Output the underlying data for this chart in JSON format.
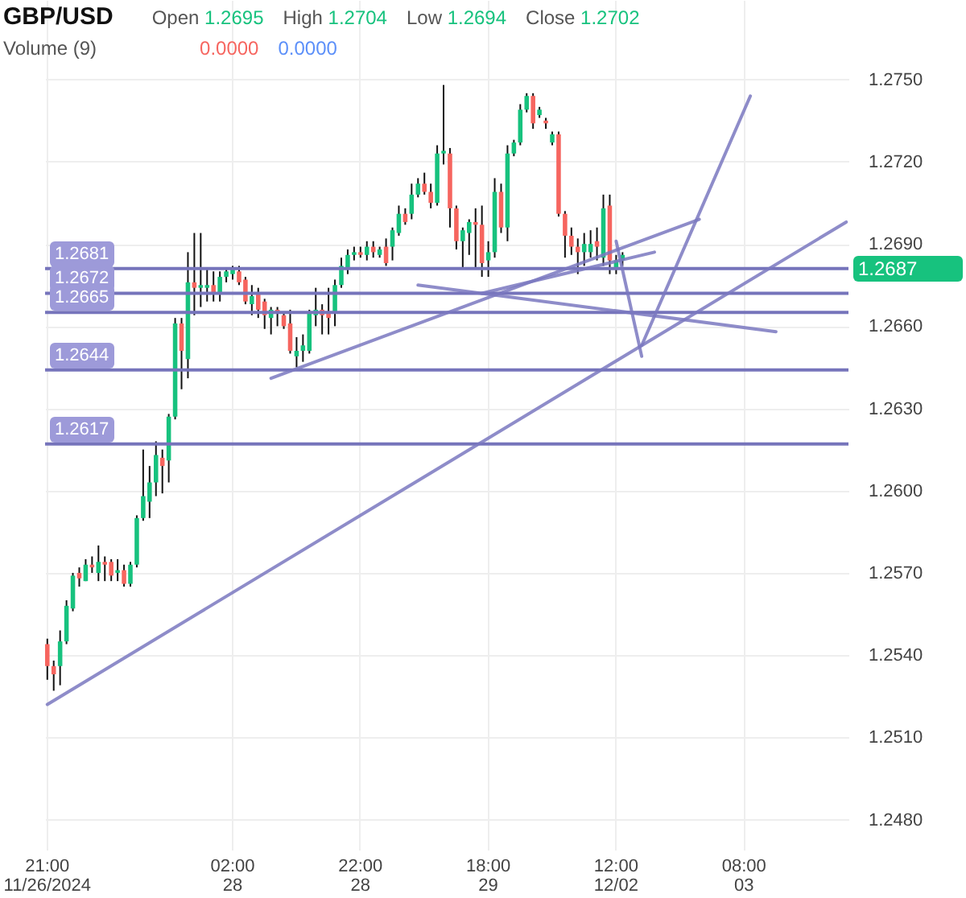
{
  "chart_data": {
    "type": "candlestick",
    "title": "GBP/USD",
    "annotations": [
      "Open 1.2695",
      "High 1.2704",
      "Low 1.2694",
      "Close 1.2702",
      "Volume (9)",
      "0.0000",
      "0.0000",
      "1.2687"
    ],
    "categories": [
      "21:00\n11/26/2024",
      null,
      null,
      null,
      null,
      null,
      null,
      null,
      null,
      null,
      null,
      null,
      null,
      null,
      null,
      null,
      null,
      null,
      null,
      null,
      null,
      null,
      null,
      null,
      null,
      null,
      null,
      null,
      null,
      "02:00\n28",
      null,
      null,
      null,
      null,
      null,
      null,
      null,
      null,
      null,
      null,
      null,
      null,
      null,
      null,
      null,
      null,
      null,
      null,
      null,
      "22:00\n28",
      null,
      null,
      null,
      null,
      null,
      null,
      null,
      null,
      null,
      null,
      null,
      null,
      null,
      null,
      null,
      null,
      null,
      null,
      null,
      "18:00\n29",
      null,
      null,
      null,
      null,
      null,
      null,
      null,
      null,
      null,
      null,
      null,
      null,
      null,
      null,
      null,
      null,
      null,
      null,
      null,
      "12:00\n12/02",
      null,
      null,
      null,
      null,
      null,
      null,
      null,
      null,
      null,
      null,
      null,
      null,
      null,
      null,
      null,
      null,
      null,
      null,
      null,
      "08:00\n03",
      null,
      null,
      null,
      null,
      null,
      null,
      null,
      null,
      null,
      null,
      null,
      null,
      null,
      null,
      null,
      null
    ],
    "ohlc": [
      [
        1.2544,
        1.2546,
        1.2531,
        1.2536
      ],
      [
        1.2536,
        1.2538,
        1.2527,
        1.2533
      ],
      [
        1.2536,
        1.2549,
        1.2529,
        1.2545
      ],
      [
        1.2545,
        1.256,
        1.2544,
        1.2558
      ],
      [
        1.2557,
        1.257,
        1.2556,
        1.2569
      ],
      [
        1.257,
        1.2572,
        1.2565,
        1.2568
      ],
      [
        1.2567,
        1.2575,
        1.2567,
        1.2573
      ],
      [
        1.2573,
        1.2576,
        1.257,
        1.2572
      ],
      [
        1.257,
        1.258,
        1.2567,
        1.2574
      ],
      [
        1.2574,
        1.2576,
        1.2567,
        1.2573
      ],
      [
        1.2574,
        1.2575,
        1.2567,
        1.2569
      ],
      [
        1.257,
        1.2575,
        1.2567,
        1.2571
      ],
      [
        1.2571,
        1.2573,
        1.2565,
        1.2566
      ],
      [
        1.2566,
        1.2574,
        1.2565,
        1.2573
      ],
      [
        1.2573,
        1.2591,
        1.2572,
        1.259
      ],
      [
        1.259,
        1.2615,
        1.2589,
        1.2598
      ],
      [
        1.2596,
        1.2609,
        1.259,
        1.2603
      ],
      [
        1.2603,
        1.2618,
        1.2598,
        1.2613
      ],
      [
        1.2612,
        1.2615,
        1.2599,
        1.2609
      ],
      [
        1.2611,
        1.2628,
        1.2603,
        1.2627
      ],
      [
        1.2627,
        1.2663,
        1.2626,
        1.2661
      ],
      [
        1.2661,
        1.2663,
        1.2637,
        1.2651
      ],
      [
        1.2648,
        1.2687,
        1.2641,
        1.2676
      ],
      [
        1.2676,
        1.2694,
        1.2664,
        1.2674
      ],
      [
        1.2674,
        1.2694,
        1.2667,
        1.2675
      ],
      [
        1.2674,
        1.2681,
        1.2669,
        1.2675
      ],
      [
        1.2675,
        1.268,
        1.2669,
        1.2672
      ],
      [
        1.2672,
        1.268,
        1.2669,
        1.2678
      ],
      [
        1.2678,
        1.2681,
        1.2676,
        1.268
      ],
      [
        1.2679,
        1.2682,
        1.2677,
        1.2681
      ],
      [
        1.268,
        1.2682,
        1.2675,
        1.2676
      ],
      [
        1.2677,
        1.2678,
        1.2668,
        1.2669
      ],
      [
        1.2668,
        1.2675,
        1.2664,
        1.2671
      ],
      [
        1.2672,
        1.2674,
        1.2663,
        1.2666
      ],
      [
        1.2669,
        1.267,
        1.2659,
        1.2664
      ],
      [
        1.2663,
        1.2667,
        1.2657,
        1.2666
      ],
      [
        1.2666,
        1.2667,
        1.266,
        1.2665
      ],
      [
        1.2664,
        1.2665,
        1.2659,
        1.266
      ],
      [
        1.2661,
        1.2666,
        1.265,
        1.2651
      ],
      [
        1.2649,
        1.2656,
        1.2645,
        1.2651
      ],
      [
        1.2651,
        1.2657,
        1.2647,
        1.2653
      ],
      [
        1.2651,
        1.2666,
        1.265,
        1.2665
      ],
      [
        1.2664,
        1.2674,
        1.266,
        1.2666
      ],
      [
        1.2666,
        1.2668,
        1.2657,
        1.2664
      ],
      [
        1.2665,
        1.2674,
        1.2657,
        1.2663
      ],
      [
        1.2665,
        1.2677,
        1.266,
        1.2675
      ],
      [
        1.2675,
        1.2685,
        1.2674,
        1.2682
      ],
      [
        1.2681,
        1.2688,
        1.2679,
        1.2686
      ],
      [
        1.2686,
        1.2689,
        1.2684,
        1.2687
      ],
      [
        1.2687,
        1.2689,
        1.2685,
        1.2686
      ],
      [
        1.2686,
        1.2691,
        1.2684,
        1.2689
      ],
      [
        1.2689,
        1.2691,
        1.2685,
        1.2687
      ],
      [
        1.2686,
        1.2689,
        1.2685,
        1.2688
      ],
      [
        1.2689,
        1.2692,
        1.2682,
        1.2683
      ],
      [
        1.2689,
        1.2696,
        1.2684,
        1.2695
      ],
      [
        1.2694,
        1.2704,
        1.2693,
        1.2701
      ],
      [
        1.2701,
        1.2703,
        1.2697,
        1.2698
      ],
      [
        1.2701,
        1.2712,
        1.2699,
        1.2708
      ],
      [
        1.2708,
        1.2714,
        1.2707,
        1.2712
      ],
      [
        1.2712,
        1.2716,
        1.2708,
        1.2709
      ],
      [
        1.2709,
        1.2712,
        1.2703,
        1.2705
      ],
      [
        1.2705,
        1.2726,
        1.2704,
        1.2723
      ],
      [
        1.2723,
        1.2748,
        1.2719,
        1.2724
      ],
      [
        1.2723,
        1.2725,
        1.2696,
        1.2703
      ],
      [
        1.2703,
        1.2704,
        1.2688,
        1.2691
      ],
      [
        1.2691,
        1.2696,
        1.2681,
        1.2695
      ],
      [
        1.2694,
        1.2699,
        1.2686,
        1.2698
      ],
      [
        1.2698,
        1.2703,
        1.2681,
        1.2697
      ],
      [
        1.2697,
        1.2704,
        1.2678,
        1.2683
      ],
      [
        1.2684,
        1.2691,
        1.2678,
        1.2687
      ],
      [
        1.2687,
        1.2714,
        1.2685,
        1.2709
      ],
      [
        1.2709,
        1.2712,
        1.2694,
        1.2696
      ],
      [
        1.2696,
        1.2726,
        1.2691,
        1.2723
      ],
      [
        1.2723,
        1.2728,
        1.2722,
        1.2727
      ],
      [
        1.2727,
        1.2741,
        1.2726,
        1.2739
      ],
      [
        1.2739,
        1.2745,
        1.2738,
        1.2744
      ],
      [
        1.2744,
        1.2745,
        1.2732,
        1.2734
      ],
      [
        1.2737,
        1.274,
        1.2736,
        1.2739
      ],
      [
        1.2735,
        1.2736,
        1.2732,
        1.2734
      ],
      [
        1.2727,
        1.2731,
        1.2726,
        1.273
      ],
      [
        1.273,
        1.2731,
        1.27,
        1.2701
      ],
      [
        1.2701,
        1.2702,
        1.2685,
        1.2693
      ],
      [
        1.2693,
        1.2696,
        1.2686,
        1.2689
      ],
      [
        1.2689,
        1.2692,
        1.2679,
        1.2687
      ],
      [
        1.2687,
        1.2694,
        1.2682,
        1.269
      ],
      [
        1.2687,
        1.2695,
        1.2685,
        1.269
      ],
      [
        1.2691,
        1.2696,
        1.2684,
        1.2689
      ],
      [
        1.2685,
        1.2708,
        1.2682,
        1.2703
      ],
      [
        1.2704,
        1.2708,
        1.2679,
        1.2684
      ],
      [
        1.2681,
        1.2686,
        1.2679,
        1.2684
      ],
      [
        1.2684,
        1.2687,
        1.2682,
        1.2686
      ],
      null,
      null,
      null,
      null,
      null,
      null,
      null,
      null,
      null,
      null,
      null,
      null,
      null,
      null,
      null,
      null,
      null,
      null,
      null,
      null,
      null,
      null,
      null,
      null,
      null,
      null,
      null,
      null,
      null,
      null,
      null,
      null,
      null,
      null,
      null
    ],
    "series": [
      {
        "type": "line",
        "color": "#7a78c0",
        "values": [
          1.2522,
          null,
          null,
          null,
          null,
          null,
          null,
          null,
          null,
          null,
          null,
          null,
          null,
          null,
          null,
          null,
          null,
          null,
          null,
          null,
          null,
          null,
          null,
          null,
          null,
          null,
          null,
          null,
          null,
          null,
          null,
          null,
          null,
          null,
          null,
          null,
          null,
          null,
          null,
          null,
          null,
          null,
          null,
          null,
          null,
          null,
          null,
          null,
          null,
          null,
          null,
          null,
          null,
          null,
          null,
          null,
          null,
          null,
          null,
          null,
          null,
          null,
          null,
          null,
          null,
          null,
          null,
          null,
          null,
          null,
          null,
          null,
          null,
          null,
          null,
          null,
          null,
          null,
          null,
          null,
          null,
          null,
          null,
          null,
          null,
          null,
          null,
          null,
          null,
          null,
          null,
          null,
          null,
          null,
          null,
          null,
          null,
          null,
          null,
          null,
          null,
          null,
          null,
          null,
          null,
          null,
          null,
          null,
          null,
          null,
          null,
          null,
          null,
          null,
          null,
          null,
          null,
          null,
          null,
          null,
          null,
          null,
          null,
          null,
          null,
          1.2698
        ]
      },
      {
        "type": "line",
        "color": "#7a78c0",
        "values": [
          null,
          null,
          null,
          null,
          null,
          null,
          null,
          null,
          null,
          null,
          null,
          null,
          null,
          null,
          null,
          null,
          null,
          null,
          null,
          null,
          null,
          null,
          null,
          null,
          null,
          null,
          null,
          null,
          null,
          null,
          null,
          null,
          null,
          null,
          null,
          1.2641,
          null,
          null,
          null,
          null,
          null,
          null,
          null,
          null,
          null,
          null,
          null,
          null,
          null,
          null,
          null,
          null,
          null,
          null,
          null,
          null,
          null,
          null,
          null,
          null,
          null,
          null,
          null,
          null,
          null,
          null,
          null,
          null,
          null,
          null,
          null,
          null,
          null,
          null,
          null,
          null,
          null,
          null,
          null,
          null,
          null,
          null,
          null,
          null,
          null,
          null,
          null,
          null,
          null,
          null,
          null,
          null,
          null,
          null,
          null,
          null,
          null,
          null,
          null,
          null,
          null,
          null,
          1.2699,
          null,
          null,
          null,
          null,
          null,
          null,
          null,
          null,
          null,
          null,
          null,
          null,
          null,
          null,
          null,
          null,
          null,
          null,
          null,
          null,
          null,
          null,
          null
        ]
      },
      {
        "type": "line",
        "color": "#7a78c0",
        "values": [
          null,
          null,
          null,
          null,
          null,
          null,
          null,
          null,
          null,
          null,
          null,
          null,
          null,
          null,
          null,
          null,
          null,
          null,
          null,
          null,
          null,
          null,
          null,
          null,
          null,
          null,
          null,
          null,
          null,
          null,
          null,
          null,
          null,
          null,
          null,
          null,
          null,
          null,
          null,
          null,
          null,
          null,
          null,
          null,
          null,
          null,
          null,
          null,
          null,
          null,
          null,
          null,
          null,
          null,
          null,
          null,
          null,
          null,
          1.2675,
          null,
          null,
          null,
          null,
          null,
          null,
          null,
          null,
          null,
          null,
          null,
          null,
          null,
          null,
          null,
          null,
          null,
          null,
          null,
          null,
          null,
          null,
          null,
          null,
          null,
          null,
          null,
          null,
          null,
          null,
          null,
          null,
          null,
          null,
          null,
          null,
          null,
          null,
          null,
          null,
          null,
          null,
          null,
          null,
          null,
          null,
          null,
          null,
          null,
          null,
          null,
          null,
          null,
          null,
          null,
          1.2658,
          null,
          null,
          null,
          null,
          null,
          null,
          null,
          null,
          null,
          null,
          null
        ]
      },
      {
        "type": "line",
        "color": "#7a78c0",
        "values": [
          null,
          null,
          null,
          null,
          null,
          null,
          null,
          null,
          null,
          null,
          null,
          null,
          null,
          null,
          null,
          null,
          null,
          null,
          null,
          null,
          null,
          null,
          null,
          null,
          null,
          null,
          null,
          null,
          null,
          null,
          null,
          null,
          null,
          null,
          null,
          null,
          null,
          null,
          null,
          null,
          null,
          null,
          null,
          null,
          null,
          null,
          null,
          null,
          null,
          null,
          null,
          null,
          null,
          null,
          null,
          null,
          null,
          null,
          null,
          null,
          null,
          null,
          null,
          null,
          null,
          null,
          null,
          null,
          1.2672,
          null,
          null,
          null,
          null,
          null,
          null,
          null,
          null,
          null,
          null,
          null,
          null,
          null,
          null,
          null,
          null,
          null,
          null,
          null,
          null,
          null,
          null,
          null,
          null,
          null,
          null,
          1.2687,
          null,
          null,
          null,
          null,
          null,
          null,
          null,
          null,
          null,
          null,
          null,
          null,
          null,
          null,
          null,
          null,
          null,
          null,
          null,
          null,
          null,
          null,
          null,
          null,
          null,
          null,
          null,
          null,
          null,
          null
        ]
      },
      {
        "type": "line",
        "color": "#7a78c0",
        "values": [
          null,
          null,
          null,
          null,
          null,
          null,
          null,
          null,
          null,
          null,
          null,
          null,
          null,
          null,
          null,
          null,
          null,
          null,
          null,
          null,
          null,
          null,
          null,
          null,
          null,
          null,
          null,
          null,
          null,
          null,
          null,
          null,
          null,
          null,
          null,
          null,
          null,
          null,
          null,
          null,
          null,
          null,
          null,
          null,
          null,
          null,
          null,
          null,
          null,
          null,
          null,
          null,
          null,
          null,
          null,
          null,
          null,
          null,
          null,
          null,
          null,
          null,
          null,
          null,
          null,
          null,
          null,
          null,
          null,
          null,
          null,
          null,
          null,
          null,
          null,
          null,
          null,
          null,
          null,
          null,
          null,
          null,
          null,
          null,
          null,
          null,
          null,
          null,
          null,
          1.2691,
          null,
          null,
          null,
          1.2649,
          null,
          null,
          null,
          null,
          null,
          null,
          null,
          null,
          null,
          null,
          null,
          null,
          null,
          null,
          null,
          null,
          null,
          null,
          null,
          null,
          null,
          null,
          null,
          null,
          null,
          null,
          null,
          null,
          null,
          null,
          null,
          null
        ]
      },
      {
        "type": "line",
        "color": "#7a78c0",
        "values": [
          null,
          null,
          null,
          null,
          null,
          null,
          null,
          null,
          null,
          null,
          null,
          null,
          null,
          null,
          null,
          null,
          null,
          null,
          null,
          null,
          null,
          null,
          null,
          null,
          null,
          null,
          null,
          null,
          null,
          null,
          null,
          null,
          null,
          null,
          null,
          null,
          null,
          null,
          null,
          null,
          null,
          null,
          null,
          null,
          null,
          null,
          null,
          null,
          null,
          null,
          null,
          null,
          null,
          null,
          null,
          null,
          null,
          null,
          null,
          null,
          null,
          null,
          null,
          null,
          null,
          null,
          null,
          null,
          null,
          null,
          null,
          null,
          null,
          null,
          null,
          null,
          null,
          null,
          null,
          null,
          null,
          null,
          null,
          null,
          null,
          null,
          null,
          null,
          null,
          null,
          null,
          null,
          null,
          1.2653,
          null,
          null,
          null,
          null,
          null,
          null,
          null,
          null,
          null,
          null,
          null,
          null,
          null,
          null,
          null,
          null,
          1.2744,
          null,
          null,
          null,
          null,
          null,
          null,
          null,
          null,
          null,
          null,
          null,
          null,
          null,
          null,
          null
        ]
      }
    ],
    "ref_lines": [
      {
        "axis": "y",
        "value": 1.2681,
        "label": "1.2681",
        "color": "#7674bb"
      },
      {
        "axis": "y",
        "value": 1.2672,
        "label": "1.2672",
        "color": "#7674bb"
      },
      {
        "axis": "y",
        "value": 1.2665,
        "label": "1.2665",
        "color": "#7674bb"
      },
      {
        "axis": "y",
        "value": 1.2644,
        "label": "1.2644",
        "color": "#7674bb"
      },
      {
        "axis": "y",
        "value": 1.2617,
        "label": "1.2617",
        "color": "#7674bb"
      }
    ],
    "ylim": [
      1.2469,
      1.2779
    ],
    "yticks": [
      {
        "value": 1.248,
        "label": "1.2480"
      },
      {
        "value": 1.251,
        "label": "1.2510"
      },
      {
        "value": 1.254,
        "label": "1.2540"
      },
      {
        "value": 1.257,
        "label": "1.2570"
      },
      {
        "value": 1.26,
        "label": "1.2600"
      },
      {
        "value": 1.263,
        "label": "1.2630"
      },
      {
        "value": 1.266,
        "label": "1.2660"
      },
      {
        "value": 1.269,
        "label": "1.2690"
      },
      {
        "value": 1.272,
        "label": "1.2720"
      },
      {
        "value": 1.275,
        "label": "1.2750"
      }
    ],
    "grid": true
  }
}
